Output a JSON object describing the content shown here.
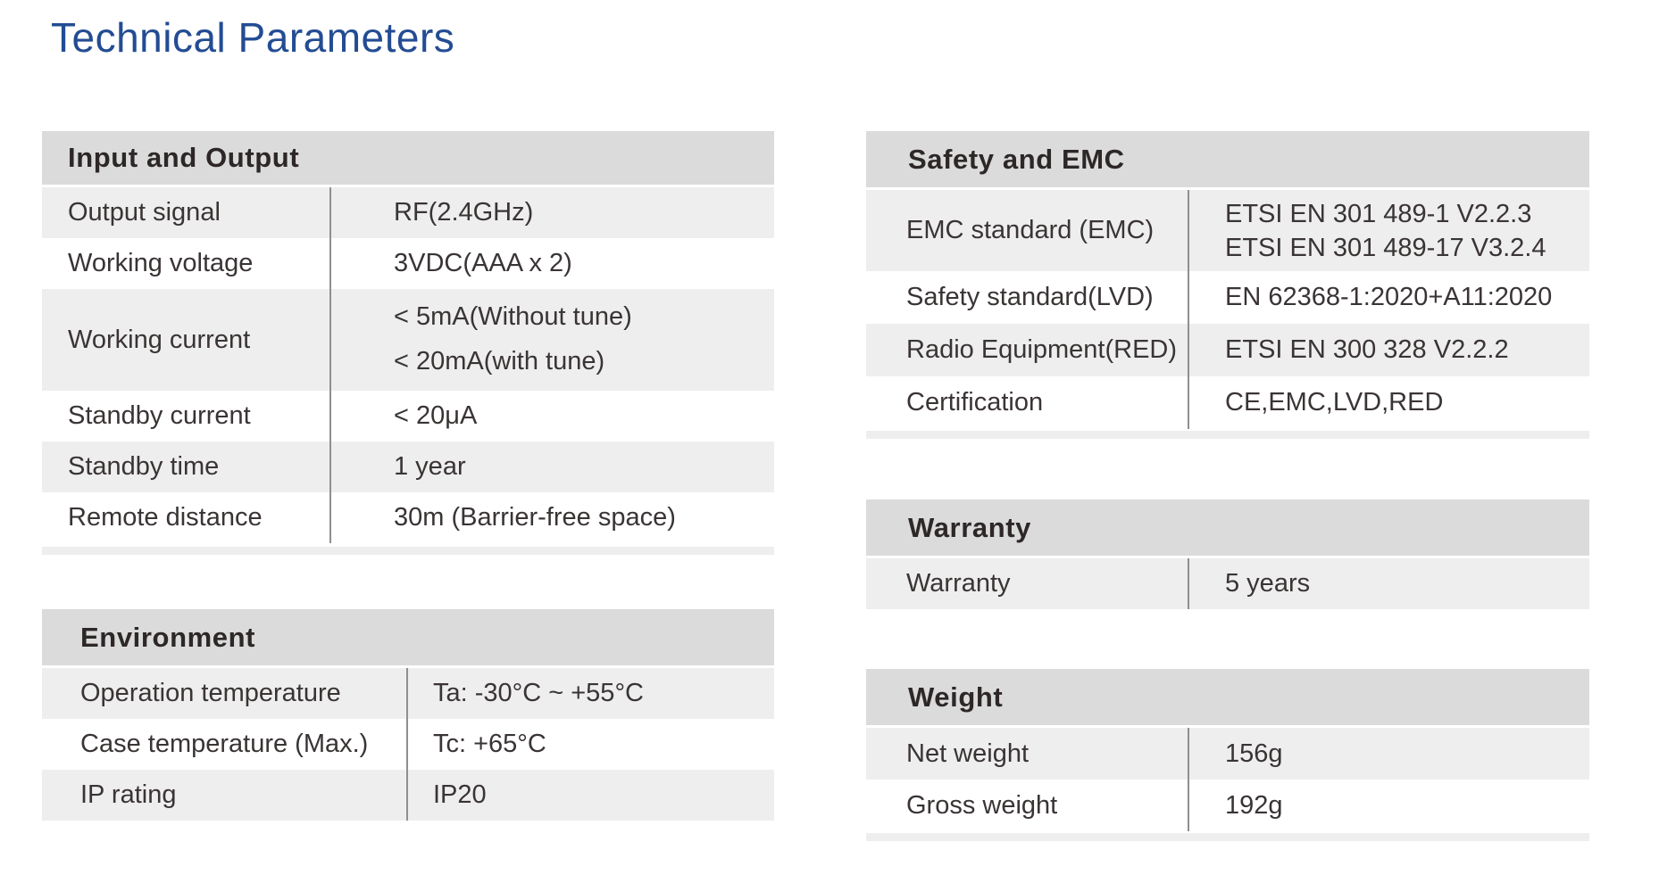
{
  "page": {
    "title": "Technical Parameters"
  },
  "colors": {
    "title_accent": "#234c93",
    "table_header_bg": "#dbdbdb",
    "row_alt_bg": "#eeeeee",
    "row_bg": "#ffffff",
    "divider": "#8f8f8f",
    "text": "#3a3434"
  },
  "tables": {
    "input_output": {
      "title": "Input and Output",
      "rows": [
        {
          "label": "Output signal",
          "value": "RF(2.4GHz)"
        },
        {
          "label": "Working voltage",
          "value": "3VDC(AAA x 2)"
        },
        {
          "label": "Working current",
          "value": "< 5mA(Without tune)",
          "value2": "< 20mA(with tune)"
        },
        {
          "label": "Standby current",
          "value": "< 20μA"
        },
        {
          "label": "Standby time",
          "value": "1 year"
        },
        {
          "label": "Remote distance",
          "value": "30m (Barrier-free space)"
        }
      ]
    },
    "environment": {
      "title": "Environment",
      "rows": [
        {
          "label": "Operation temperature",
          "value": "Ta: -30°C ~ +55°C"
        },
        {
          "label": "Case temperature (Max.)",
          "value": "Tc: +65°C"
        },
        {
          "label": "IP rating",
          "value": "IP20"
        }
      ]
    },
    "safety_emc": {
      "title": "Safety and EMC",
      "rows": [
        {
          "label": "EMC standard (EMC)",
          "value": "ETSI EN 301 489-1 V2.2.3",
          "value2": "ETSI EN 301 489-17 V3.2.4"
        },
        {
          "label": "Safety standard(LVD)",
          "value": "EN 62368-1:2020+A11:2020"
        },
        {
          "label": "Radio Equipment(RED)",
          "value": "ETSI EN 300 328 V2.2.2"
        },
        {
          "label": "Certification",
          "value": "CE,EMC,LVD,RED"
        }
      ]
    },
    "warranty": {
      "title": "Warranty",
      "rows": [
        {
          "label": "Warranty",
          "value": "5 years"
        }
      ]
    },
    "weight": {
      "title": "Weight",
      "rows": [
        {
          "label": "Net weight",
          "value": "156g"
        },
        {
          "label": "Gross weight",
          "value": "192g"
        }
      ]
    }
  }
}
